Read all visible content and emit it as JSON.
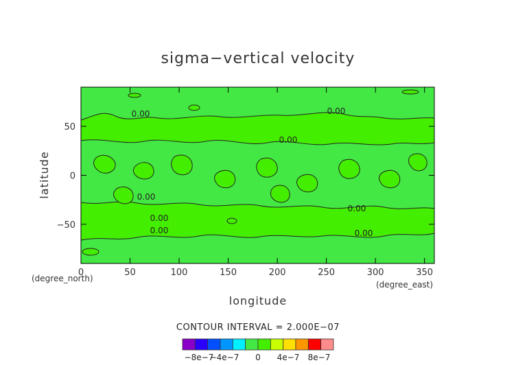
{
  "chart_data": {
    "type": "heatmap",
    "title": "sigma−vertical velocity",
    "xlabel": "longitude",
    "ylabel": "latitude",
    "x_unit": "(degree_east)",
    "y_unit": "(degree_north)",
    "xlim": [
      0,
      360
    ],
    "ylim": [
      -90,
      90
    ],
    "x_ticks": [
      "0",
      "50",
      "100",
      "150",
      "200",
      "250",
      "300",
      "350"
    ],
    "y_ticks": [
      "50",
      "0",
      "−50"
    ],
    "contour_labels": [
      "0.00",
      "0.00",
      "0.00",
      "0.00",
      "0.00",
      "0.00",
      "0.00",
      "0.00"
    ],
    "contour_interval_text": "CONTOUR INTERVAL = 2.000E−07",
    "colorbar": {
      "colors": [
        "#8a00c8",
        "#2a00ff",
        "#0050ff",
        "#0096ff",
        "#00f0ff",
        "#44e844",
        "#44ee00",
        "#c8ff00",
        "#ffe000",
        "#ff9600",
        "#ff0000",
        "#ff8c8c"
      ],
      "tick_labels": [
        "−8e−7",
        "−4e−7",
        "0",
        "4e−7",
        "8e−7"
      ]
    },
    "field_colors": {
      "positive_band": "#44ee00",
      "negative_band": "#44e844"
    }
  }
}
